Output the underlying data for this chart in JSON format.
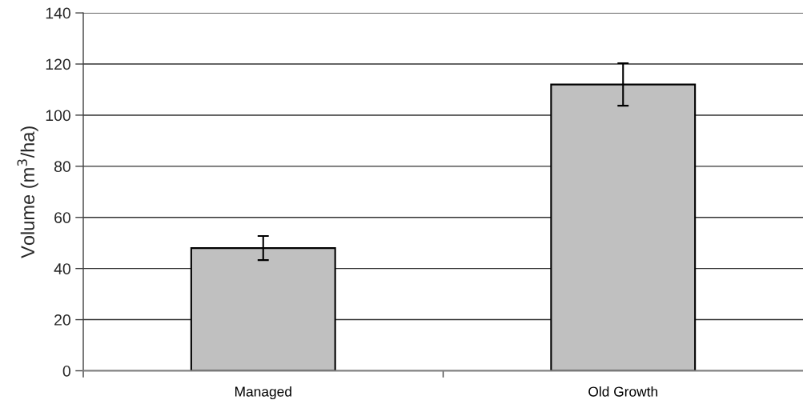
{
  "chart_data": {
    "type": "bar",
    "ylabel": "Volume (m$^{3}$/ha)",
    "categories": [
      "Managed",
      "Old Growth"
    ],
    "values": [
      48,
      112
    ],
    "errors": [
      4.7,
      8.3
    ],
    "color": "#c0c0c0",
    "ylim": [
      0,
      140
    ],
    "yticks": [
      0,
      20,
      40,
      60,
      80,
      100,
      120,
      140
    ],
    "grid": "y",
    "legend": false
  }
}
